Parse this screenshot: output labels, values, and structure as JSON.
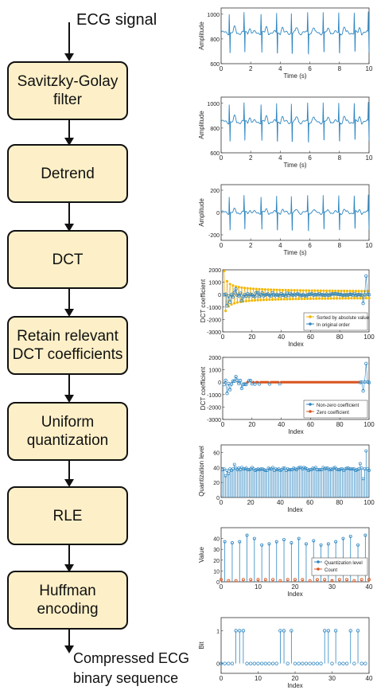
{
  "flow": {
    "input_label": "ECG signal",
    "output_label_1": "Compressed ECG",
    "output_label_2": "binary sequence",
    "steps": [
      {
        "line1": "Savitzky-Golay",
        "line2": "filter"
      },
      {
        "line1": "Detrend",
        "line2": ""
      },
      {
        "line1": "DCT",
        "line2": ""
      },
      {
        "line1": "Retain relevant",
        "line2": "DCT coefficients"
      },
      {
        "line1": "Uniform",
        "line2": "quantization"
      },
      {
        "line1": "RLE",
        "line2": ""
      },
      {
        "line1": "Huffman",
        "line2": "encoding"
      }
    ]
  },
  "chart_data": [
    {
      "type": "line",
      "xlabel": "Time (s)",
      "ylabel": "Amplitude",
      "xlim": [
        0,
        10
      ],
      "ylim": [
        600,
        1050
      ],
      "xticks": [
        "0",
        "2",
        "4",
        "6",
        "8",
        "10"
      ],
      "yticks": [
        "600",
        "800",
        "1000"
      ],
      "baseline": 850,
      "spike_min": 650,
      "spike_max": 1010,
      "color": "#2e86c1"
    },
    {
      "type": "line",
      "xlabel": "Time (s)",
      "ylabel": "Amplitude",
      "xlim": [
        0,
        10
      ],
      "ylim": [
        600,
        1050
      ],
      "xticks": [
        "0",
        "2",
        "4",
        "6",
        "8",
        "10"
      ],
      "yticks": [
        "600",
        "800",
        "1000"
      ],
      "baseline": 850,
      "spike_min": 660,
      "spike_max": 1000,
      "color": "#2e86c1"
    },
    {
      "type": "line",
      "xlabel": "Time (s)",
      "ylabel": "Amplitude",
      "xlim": [
        0,
        10
      ],
      "ylim": [
        -250,
        250
      ],
      "xticks": [
        "0",
        "2",
        "4",
        "6",
        "8",
        "10"
      ],
      "yticks": [
        "-200",
        "0",
        "200"
      ],
      "baseline": 0,
      "spike_min": -190,
      "spike_max": 150,
      "color": "#2e86c1"
    },
    {
      "type": "scatter",
      "xlabel": "Index",
      "ylabel": "DCT coefficient",
      "xlim": [
        0,
        100
      ],
      "ylim": [
        -3000,
        2000
      ],
      "xticks": [
        "0",
        "20",
        "40",
        "60",
        "80",
        "100"
      ],
      "yticks": [
        "2000",
        "1000",
        "0",
        "-1000",
        "-2000",
        "-3000"
      ],
      "legend": [
        "Sorted by absolute value",
        "In original order"
      ],
      "legend_position": "bottom-right"
    },
    {
      "type": "scatter",
      "xlabel": "Index",
      "ylabel": "DCT coefficient",
      "xlim": [
        0,
        100
      ],
      "ylim": [
        -3000,
        2000
      ],
      "xticks": [
        "0",
        "20",
        "40",
        "60",
        "80",
        "100"
      ],
      "yticks": [
        "2000",
        "1000",
        "0",
        "-1000",
        "-2000",
        "-3000"
      ],
      "legend": [
        "Non-zero coefficient",
        "Zero coefficient"
      ],
      "legend_position": "bottom-right"
    },
    {
      "type": "bar",
      "xlabel": "Index",
      "ylabel": "Quantization level",
      "xlim": [
        0,
        100
      ],
      "ylim": [
        0,
        70
      ],
      "xticks": [
        "0",
        "20",
        "40",
        "60",
        "80",
        "100"
      ],
      "yticks": [
        "0",
        "20",
        "40",
        "60"
      ]
    },
    {
      "type": "bar",
      "xlabel": "Index",
      "ylabel": "Value",
      "xlim": [
        0,
        40
      ],
      "ylim": [
        0,
        50
      ],
      "xticks": [
        "0",
        "10",
        "20",
        "30",
        "40"
      ],
      "yticks": [
        "0",
        "10",
        "20",
        "30",
        "40"
      ],
      "legend": [
        "Quantization level",
        "Count"
      ],
      "legend_position": "right"
    },
    {
      "type": "scatter",
      "xlabel": "Index",
      "ylabel": "Bit",
      "xlim": [
        0,
        40
      ],
      "ylim": [
        -0.3,
        1.4
      ],
      "xticks": [
        "0",
        "10",
        "20",
        "30",
        "40"
      ],
      "yticks": [
        "0",
        "1"
      ],
      "bits": [
        0,
        0,
        0,
        0,
        1,
        1,
        1,
        0,
        0,
        0,
        0,
        0,
        0,
        0,
        0,
        0,
        1,
        1,
        0,
        1,
        0,
        0,
        0,
        0,
        0,
        0,
        0,
        0,
        1,
        1,
        0,
        1,
        0,
        0,
        0,
        1,
        0,
        1,
        0,
        0
      ]
    }
  ]
}
